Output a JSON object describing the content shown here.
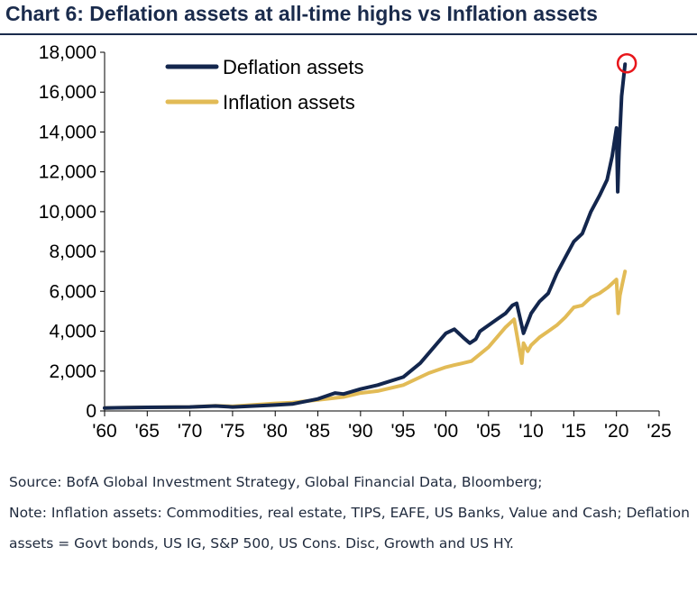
{
  "title": "Chart 6: Deflation assets at all-time highs vs Inflation assets",
  "source": "Source: BofA Global Investment Strategy, Global Financial Data, Bloomberg;",
  "note": "Note: Inflation assets: Commodities, real estate, TIPS, EAFE, US Banks, Value and Cash; Deflation assets = Govt bonds, US IG, S&P 500, US Cons. Disc, Growth and US HY.",
  "colors": {
    "deflation": "#13264d",
    "inflation": "#e2bb56",
    "highlight": "#e8161b",
    "title": "#1a2b4c"
  },
  "chart_data": {
    "type": "line",
    "title": "Chart 6: Deflation assets at all-time highs vs Inflation assets",
    "xlim": [
      1960,
      2025
    ],
    "ylim": [
      0,
      18000
    ],
    "xticks": [
      1960,
      1965,
      1970,
      1975,
      1980,
      1985,
      1990,
      1995,
      2000,
      2005,
      2010,
      2015,
      2020,
      2025
    ],
    "xtick_labels": [
      "'60",
      "'65",
      "'70",
      "'75",
      "'80",
      "'85",
      "'90",
      "'95",
      "'00",
      "'05",
      "'10",
      "'15",
      "'20",
      "'25"
    ],
    "yticks": [
      0,
      2000,
      4000,
      6000,
      8000,
      10000,
      12000,
      14000,
      16000,
      18000
    ],
    "ytick_labels": [
      "0",
      "2,000",
      "4,000",
      "6,000",
      "8,000",
      "10,000",
      "12,000",
      "14,000",
      "16,000",
      "18,000"
    ],
    "legend_position": "top-left",
    "grid": false,
    "series": [
      {
        "name": "Deflation assets",
        "color": "#13264d",
        "x": [
          1960,
          1965,
          1970,
          1973,
          1975,
          1980,
          1982,
          1985,
          1987,
          1988,
          1990,
          1992,
          1995,
          1997,
          1999,
          2000,
          2001,
          2002,
          2002.8,
          2003.5,
          2004,
          2006,
          2007,
          2007.8,
          2008.3,
          2009.1,
          2010,
          2011,
          2012,
          2013,
          2014,
          2015,
          2016,
          2017,
          2018,
          2018.9,
          2019.5,
          2020.0,
          2020.15,
          2020.3,
          2020.6,
          2021.0
        ],
        "y": [
          150,
          180,
          200,
          250,
          200,
          300,
          350,
          600,
          900,
          850,
          1100,
          1300,
          1700,
          2400,
          3400,
          3900,
          4100,
          3700,
          3400,
          3600,
          4000,
          4600,
          4900,
          5300,
          5400,
          3900,
          4900,
          5500,
          5900,
          6900,
          7700,
          8500,
          8900,
          10000,
          10800,
          11600,
          12800,
          14200,
          11000,
          13000,
          15800,
          17400
        ]
      },
      {
        "name": "Inflation assets",
        "color": "#e2bb56",
        "x": [
          1960,
          1965,
          1970,
          1973,
          1975,
          1980,
          1982,
          1985,
          1988,
          1990,
          1992,
          1995,
          1998,
          2000,
          2001,
          2002,
          2003,
          2005,
          2007,
          2008,
          2008.9,
          2009.1,
          2009.6,
          2010,
          2011,
          2012,
          2013,
          2014,
          2015,
          2016,
          2017,
          2018,
          2019,
          2020.0,
          2020.2,
          2020.4,
          2020.7,
          2021.0
        ],
        "y": [
          150,
          180,
          200,
          260,
          230,
          380,
          420,
          550,
          700,
          900,
          1000,
          1300,
          1900,
          2200,
          2300,
          2400,
          2500,
          3200,
          4200,
          4600,
          2400,
          3400,
          3000,
          3300,
          3700,
          4000,
          4300,
          4700,
          5200,
          5300,
          5700,
          5900,
          6200,
          6600,
          4900,
          5800,
          6400,
          7000
        ]
      }
    ],
    "highlight": {
      "x": 2021.0,
      "y": 17400,
      "shape": "circle"
    }
  }
}
